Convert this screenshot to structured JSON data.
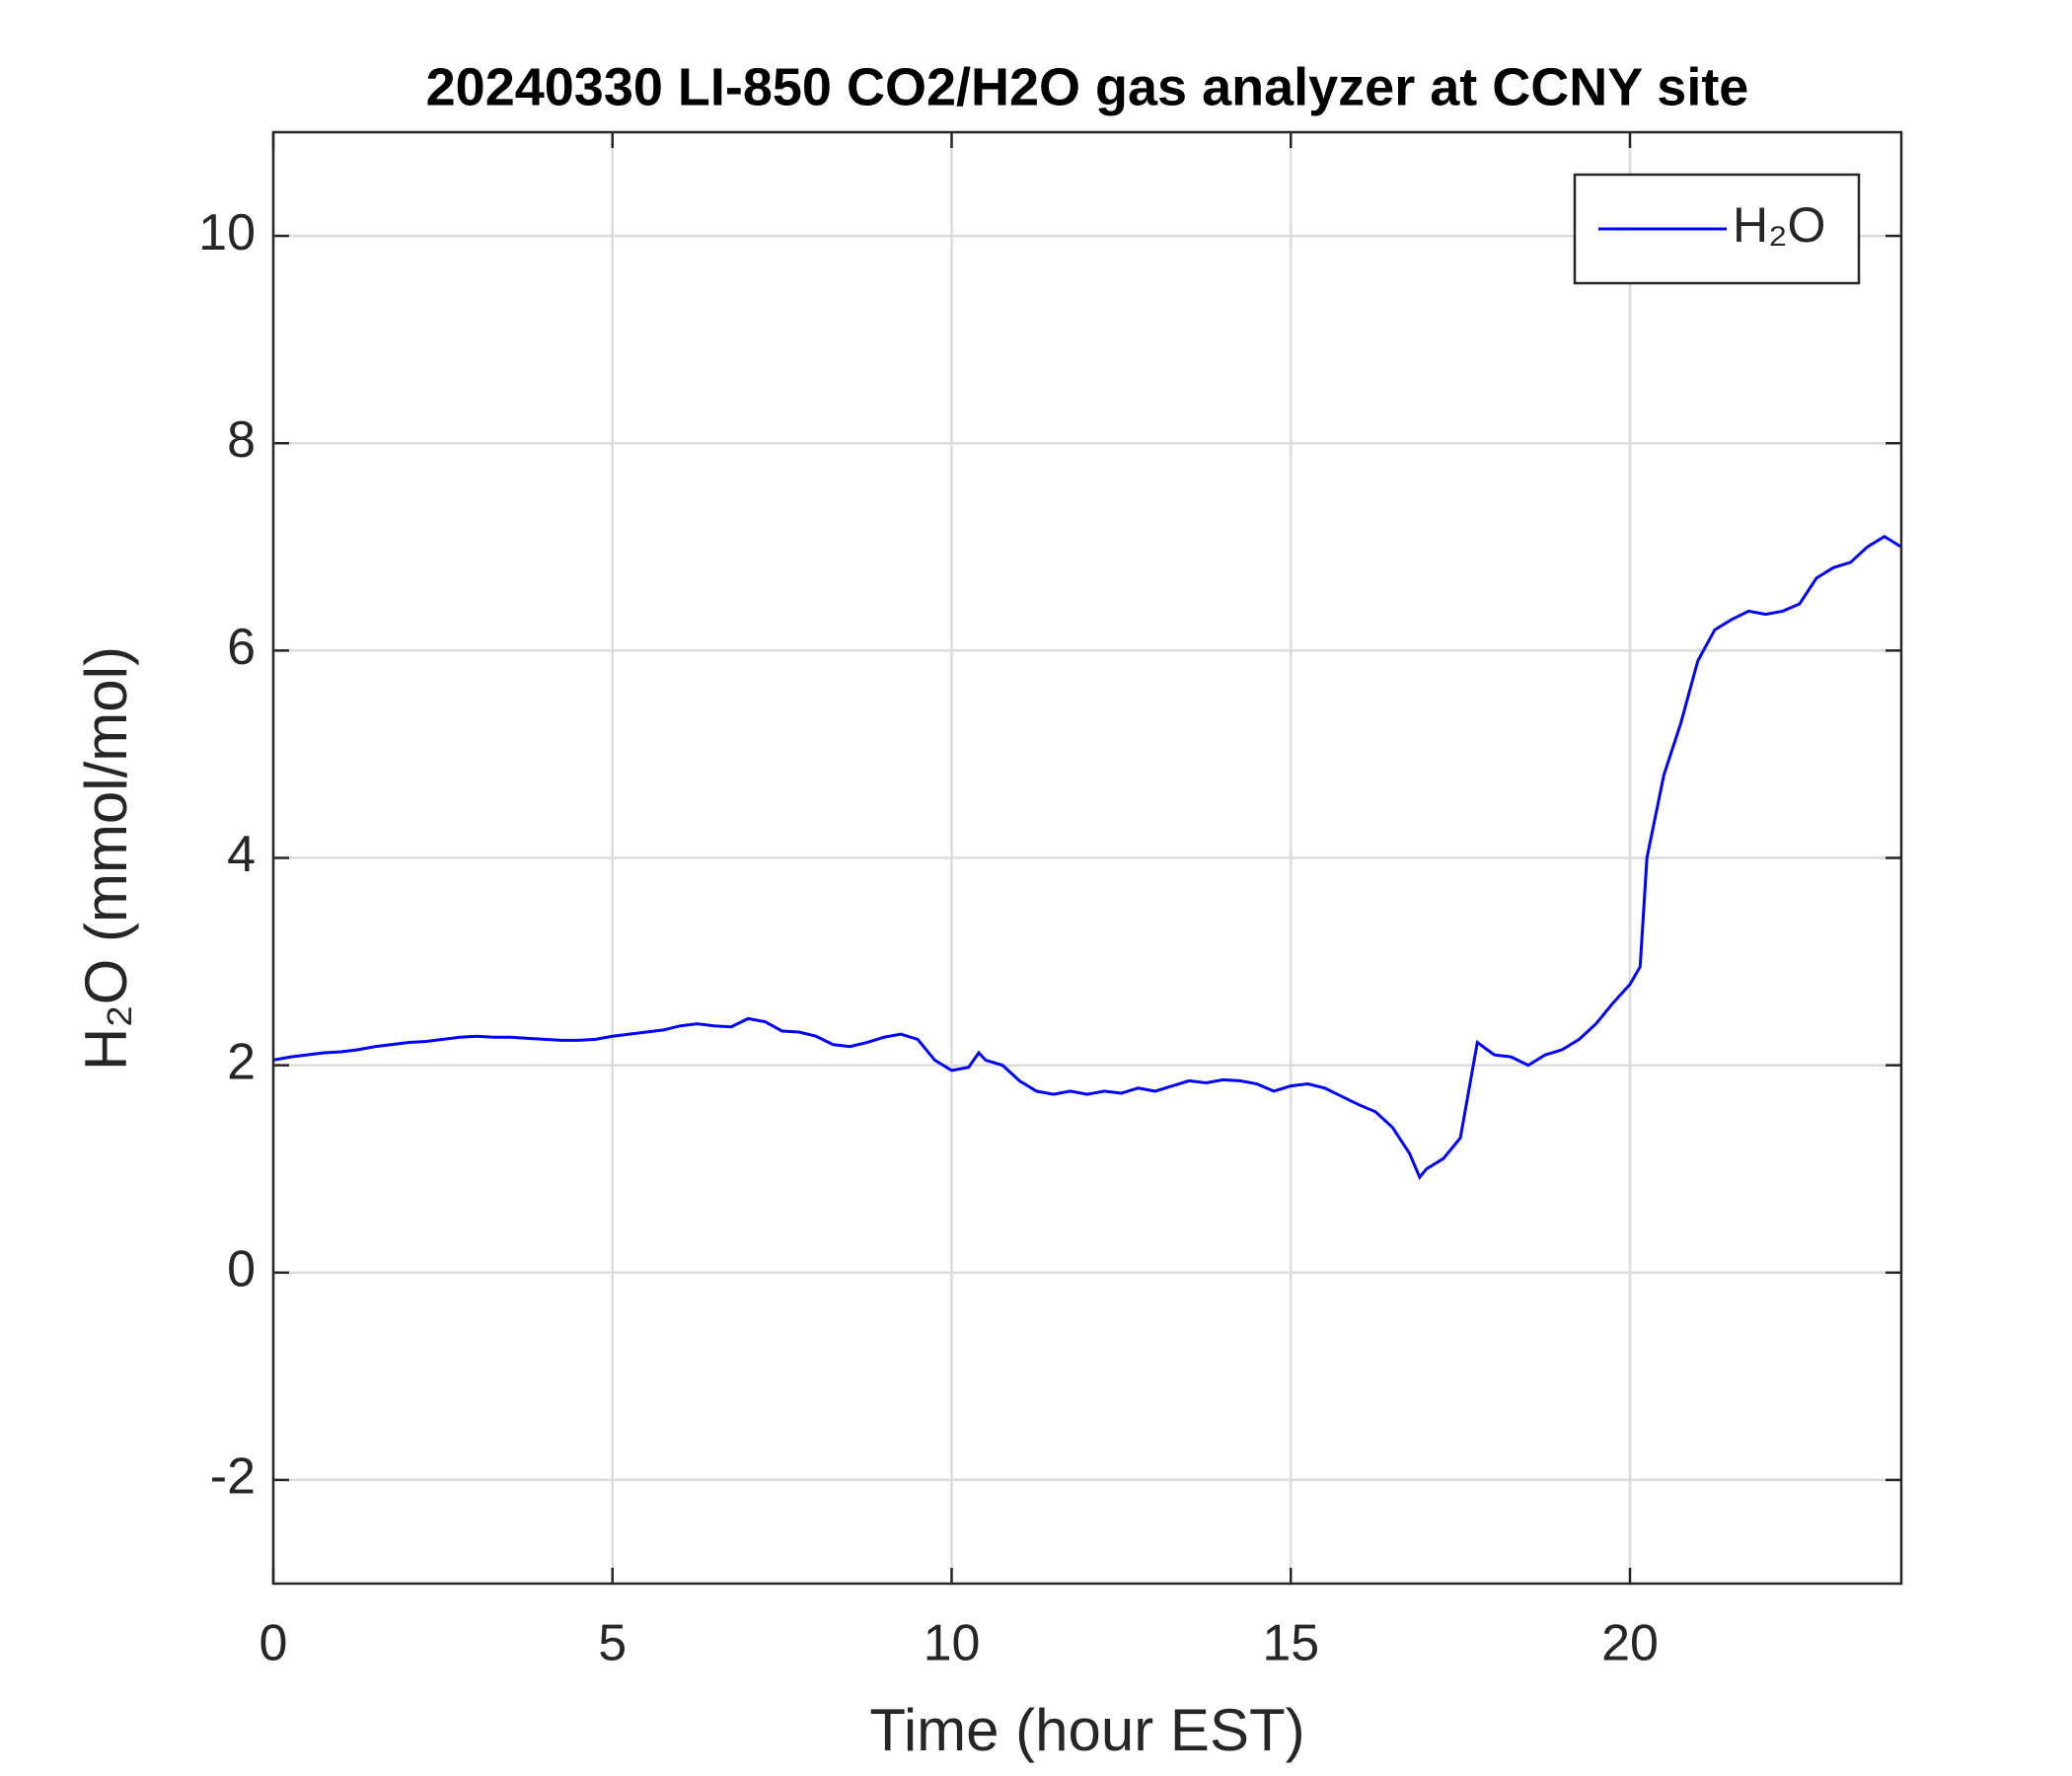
{
  "chart_data": {
    "type": "line",
    "title": "20240330 LI-850 CO2/H2O gas analyzer at CCNY site",
    "x_label": "Time (hour EST)",
    "y_label": "H₂O (mmol/mol)",
    "x": [
      0,
      0.25,
      0.5,
      0.75,
      1,
      1.25,
      1.5,
      1.75,
      2,
      2.25,
      2.5,
      2.75,
      3,
      3.25,
      3.5,
      3.75,
      4,
      4.25,
      4.5,
      4.75,
      5,
      5.25,
      5.5,
      5.75,
      6,
      6.25,
      6.5,
      6.75,
      7,
      7.25,
      7.5,
      7.75,
      8,
      8.25,
      8.5,
      8.75,
      9,
      9.25,
      9.5,
      9.75,
      10,
      10.25,
      10.4,
      10.5,
      10.75,
      11,
      11.25,
      11.5,
      11.75,
      12,
      12.25,
      12.5,
      12.75,
      13,
      13.25,
      13.5,
      13.75,
      14,
      14.25,
      14.5,
      14.75,
      15,
      15.25,
      15.5,
      15.75,
      16,
      16.25,
      16.5,
      16.75,
      16.9,
      17,
      17.25,
      17.5,
      17.75,
      18,
      18.25,
      18.5,
      18.75,
      19,
      19.25,
      19.5,
      19.75,
      20,
      20.15,
      20.25,
      20.5,
      20.75,
      21,
      21.25,
      21.5,
      21.75,
      22,
      22.25,
      22.5,
      22.75,
      23,
      23.25,
      23.5,
      23.75,
      24
    ],
    "series": [
      {
        "name": "H₂O",
        "color": "#0000ff",
        "values": [
          2.05,
          2.08,
          2.1,
          2.12,
          2.13,
          2.15,
          2.18,
          2.2,
          2.22,
          2.23,
          2.25,
          2.27,
          2.28,
          2.27,
          2.27,
          2.26,
          2.25,
          2.24,
          2.24,
          2.25,
          2.28,
          2.3,
          2.32,
          2.34,
          2.38,
          2.4,
          2.38,
          2.37,
          2.45,
          2.42,
          2.33,
          2.32,
          2.28,
          2.2,
          2.18,
          2.22,
          2.27,
          2.3,
          2.25,
          2.05,
          1.95,
          1.98,
          2.12,
          2.05,
          2.0,
          1.85,
          1.75,
          1.72,
          1.75,
          1.72,
          1.75,
          1.73,
          1.78,
          1.75,
          1.8,
          1.85,
          1.83,
          1.86,
          1.85,
          1.82,
          1.75,
          1.8,
          1.82,
          1.78,
          1.7,
          1.62,
          1.55,
          1.4,
          1.15,
          0.92,
          1.0,
          1.1,
          1.3,
          2.22,
          2.1,
          2.08,
          2.0,
          2.1,
          2.15,
          2.25,
          2.4,
          2.6,
          2.78,
          2.95,
          4.0,
          4.8,
          5.3,
          5.9,
          6.2,
          6.3,
          6.38,
          6.35,
          6.38,
          6.45,
          6.7,
          6.8,
          6.85,
          7.0,
          7.1,
          7.0
        ]
      }
    ],
    "xlim": [
      0,
      24
    ],
    "xticks": [
      0,
      5,
      10,
      15,
      20
    ],
    "ylim": [
      -3,
      11
    ],
    "yticks": [
      -2,
      0,
      2,
      4,
      6,
      8,
      10
    ],
    "grid": true,
    "legend": "northeast"
  }
}
